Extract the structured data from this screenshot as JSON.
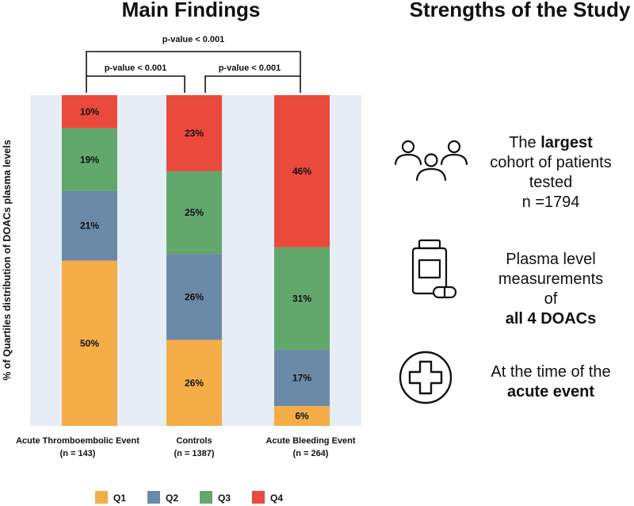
{
  "left_title": "Main Findings",
  "right_title": "Strengths of the Study",
  "colors": {
    "Q1": "#f5ad47",
    "Q2": "#6b8aa8",
    "Q3": "#62a86c",
    "Q4": "#e94a3c",
    "panel_bg": "#e6edf6"
  },
  "chart_data": {
    "type": "bar",
    "stacked": true,
    "ylabel": "% of Quartiles distribution of DOACs plasma levels",
    "ylim": [
      0,
      100
    ],
    "categories": [
      "Acute Thromboembolic Event",
      "Controls",
      "Acute Bleeding Event"
    ],
    "category_n": [
      "(n = 143)",
      "(n = 1387)",
      "(n = 264)"
    ],
    "series": [
      {
        "name": "Q1",
        "values": [
          50,
          26,
          6
        ]
      },
      {
        "name": "Q2",
        "values": [
          21,
          26,
          17
        ]
      },
      {
        "name": "Q3",
        "values": [
          19,
          25,
          31
        ]
      },
      {
        "name": "Q4",
        "values": [
          10,
          23,
          46
        ]
      }
    ],
    "value_labels": [
      [
        "50%",
        "21%",
        "19%",
        "10%"
      ],
      [
        "26%",
        "26%",
        "25%",
        "23%"
      ],
      [
        "6%",
        "17%",
        "31%",
        "46%"
      ]
    ],
    "legend": [
      "Q1",
      "Q2",
      "Q3",
      "Q4"
    ],
    "legend_position": "bottom",
    "annotations": [
      {
        "text": "p-value < 0.001",
        "from": 0,
        "to": 1
      },
      {
        "text": "p-value < 0.001",
        "from": 1,
        "to": 2
      },
      {
        "text": "p-value < 0.001",
        "from": 0,
        "to": 2
      }
    ]
  },
  "strengths": [
    {
      "icon": "people-icon",
      "pre": "The ",
      "bold": "largest",
      "post": " cohort of patients tested",
      "line3": "n =1794"
    },
    {
      "icon": "pill-bottle-icon",
      "pre": "Plasma level measurements of",
      "bold": "all 4 DOACs",
      "post": "",
      "line3": ""
    },
    {
      "icon": "medical-cross-icon",
      "pre": "At the time of the",
      "bold": "acute event",
      "post": "",
      "line3": ""
    }
  ]
}
